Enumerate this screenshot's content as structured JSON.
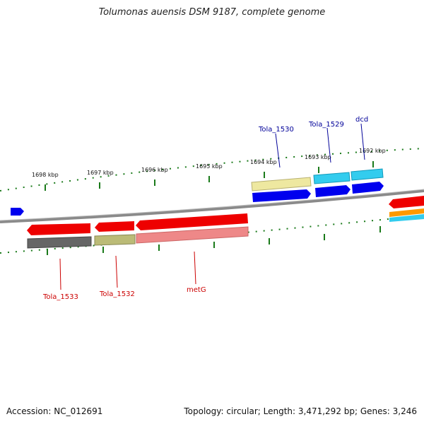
{
  "title": "Tolumonas auensis DSM 9187, complete genome",
  "footer": {
    "accession": "Accession: NC_012691",
    "topology": "Topology: circular; Length: 3,471,292 bp; Genes: 3,246"
  },
  "tick_labels": [
    "1698 kbp",
    "1697 kbp",
    "1696 kbp",
    "1695 kbp",
    "1694 kbp",
    "1693 kbp",
    "1692 kbp"
  ],
  "gene_labels": {
    "tola_1530": "Tola_1530",
    "tola_1529": "Tola_1529",
    "dcd": "dcd",
    "tola_1533": "Tola_1533",
    "tola_1532": "Tola_1532",
    "metg": "metG"
  },
  "colors": {
    "forward_gene": "#0000dd",
    "reverse_gene": "#ee0000",
    "backbone": "#8a8a8a",
    "tick": "#1a7a1a",
    "forward_label": "#000099",
    "reverse_label": "#cc0000",
    "tola_1530_feature": "#eee8a0",
    "tola_1529_feature": "#33ccee",
    "tola_1533_feature": "#666666",
    "tola_1532_feature": "#bbbb77",
    "metg_feature": "#ee8888"
  }
}
